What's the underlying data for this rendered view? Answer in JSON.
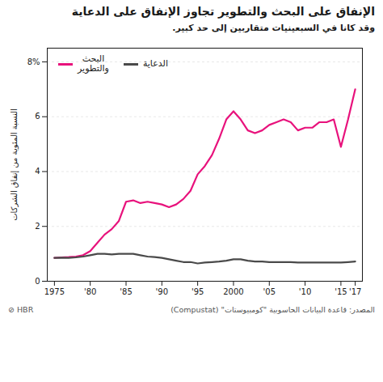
{
  "chart_data": {
    "type": "line",
    "title": "الإنفاق على البحث والتطوير تجاوز الإنفاق على الدعاية",
    "subtitle": "وقد كانا في السبعينيات متقاربين إلى حد كبير.",
    "ylabel": "النسبة المئوية من إنفاق الشركات",
    "annotations": [
      "المصدر: قاعدة البيانات الحاسوبية \"كومبيوستات\" (Compustat)",
      "⊘ HBR"
    ],
    "x": [
      1975,
      1976,
      1977,
      1978,
      1979,
      1980,
      1981,
      1982,
      1983,
      1984,
      1985,
      1986,
      1987,
      1988,
      1989,
      1990,
      1991,
      1992,
      1993,
      1994,
      1995,
      1996,
      1997,
      1998,
      1999,
      2000,
      2001,
      2002,
      2003,
      2004,
      2005,
      2006,
      2007,
      2008,
      2009,
      2010,
      2011,
      2012,
      2013,
      2014,
      2015,
      2016,
      2017
    ],
    "series": [
      {
        "name": "البحث\nوالتطوير",
        "color": "#e8127c",
        "values": [
          0.85,
          0.87,
          0.88,
          0.9,
          0.95,
          1.1,
          1.4,
          1.7,
          1.9,
          2.2,
          2.9,
          2.95,
          2.85,
          2.9,
          2.85,
          2.8,
          2.7,
          2.8,
          3.0,
          3.3,
          3.9,
          4.2,
          4.6,
          5.2,
          5.9,
          6.2,
          5.9,
          5.5,
          5.4,
          5.5,
          5.7,
          5.8,
          5.9,
          5.8,
          5.5,
          5.6,
          5.6,
          5.8,
          5.8,
          5.9,
          4.9,
          5.9,
          7.0
        ]
      },
      {
        "name": "الدعاية",
        "color": "#4a4a4a",
        "values": [
          0.85,
          0.86,
          0.85,
          0.87,
          0.9,
          0.95,
          1.0,
          1.0,
          0.98,
          1.0,
          1.0,
          1.0,
          0.95,
          0.9,
          0.88,
          0.85,
          0.8,
          0.75,
          0.7,
          0.7,
          0.65,
          0.68,
          0.7,
          0.72,
          0.75,
          0.8,
          0.8,
          0.75,
          0.72,
          0.72,
          0.7,
          0.7,
          0.7,
          0.7,
          0.68,
          0.68,
          0.68,
          0.68,
          0.68,
          0.68,
          0.68,
          0.7,
          0.72
        ]
      }
    ],
    "xlim": [
      1974,
      2018
    ],
    "xticks": [
      1975,
      {
        "value": 1980,
        "label": "'80"
      },
      {
        "value": 1985,
        "label": "'85"
      },
      {
        "value": 1990,
        "label": "'90"
      },
      {
        "value": 1995,
        "label": "'95"
      },
      2000,
      {
        "value": 2005,
        "label": "'05"
      },
      {
        "value": 2010,
        "label": "'10"
      },
      {
        "value": 2015,
        "label": "'15"
      },
      {
        "value": 2017,
        "label": "'17"
      }
    ],
    "ylim": [
      0,
      8.5
    ],
    "yticks": [
      0,
      2,
      4,
      6,
      {
        "value": 8,
        "label": "8%"
      }
    ],
    "grid": true,
    "legend": "upper left"
  }
}
